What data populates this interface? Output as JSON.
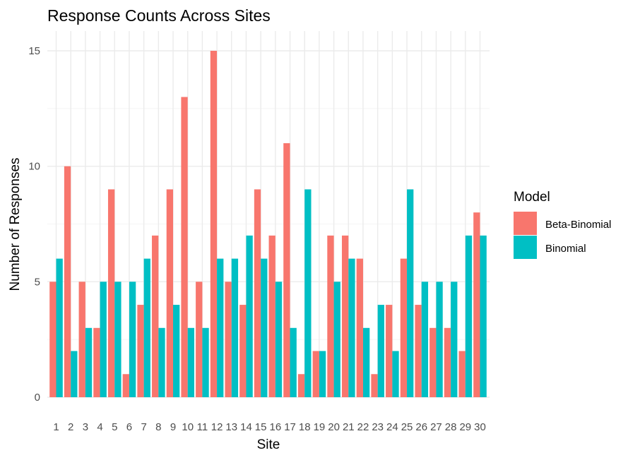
{
  "chart_data": {
    "type": "bar",
    "title": "Response Counts Across Sites",
    "xlabel": "Site",
    "ylabel": "Number of Responses",
    "ylim": [
      0,
      15
    ],
    "yticks": [
      0,
      5,
      10,
      15
    ],
    "grid": true,
    "legend_position": "right",
    "legend_title": "Model",
    "categories": [
      "1",
      "2",
      "3",
      "4",
      "5",
      "6",
      "7",
      "8",
      "9",
      "10",
      "11",
      "12",
      "13",
      "14",
      "15",
      "16",
      "17",
      "18",
      "19",
      "20",
      "21",
      "22",
      "23",
      "24",
      "25",
      "26",
      "27",
      "28",
      "29",
      "30"
    ],
    "series": [
      {
        "name": "Beta-Binomial",
        "color": "#F8766D",
        "values": [
          5,
          10,
          5,
          3,
          9,
          1,
          4,
          7,
          9,
          13,
          5,
          15,
          5,
          4,
          9,
          7,
          11,
          1,
          2,
          7,
          7,
          6,
          1,
          4,
          6,
          4,
          3,
          3,
          2,
          8
        ]
      },
      {
        "name": "Binomial",
        "color": "#00BFC4",
        "values": [
          6,
          2,
          3,
          5,
          5,
          5,
          6,
          3,
          4,
          3,
          3,
          6,
          6,
          7,
          6,
          5,
          3,
          9,
          2,
          5,
          6,
          3,
          4,
          2,
          9,
          5,
          5,
          5,
          7,
          7
        ]
      }
    ]
  }
}
